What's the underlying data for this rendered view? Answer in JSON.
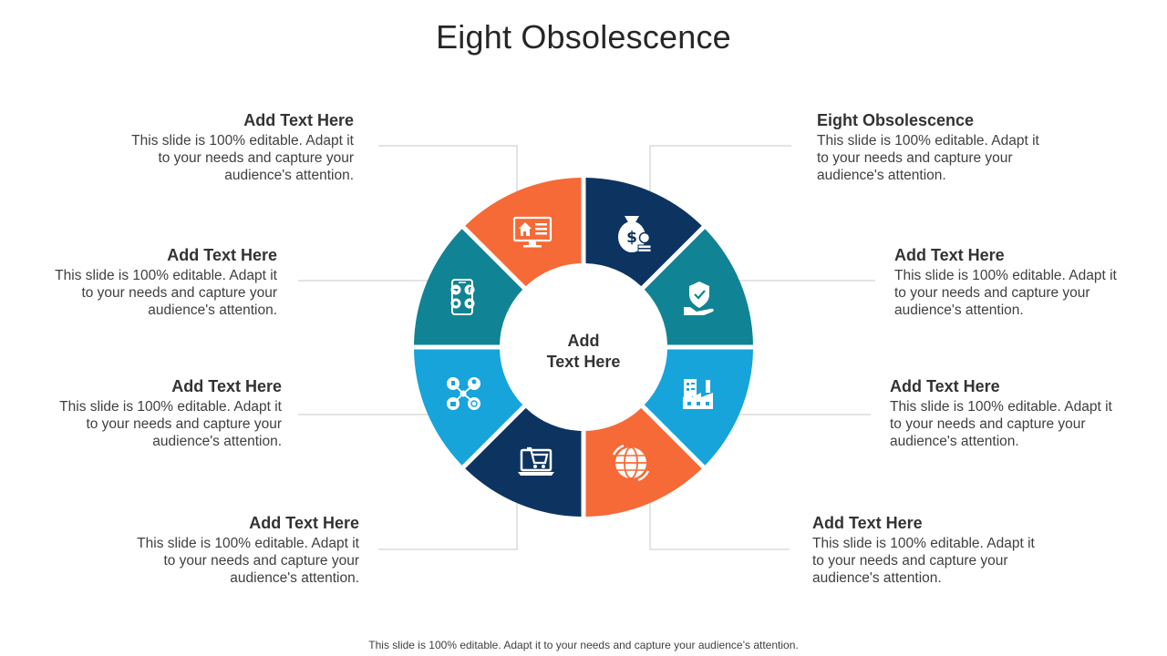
{
  "title": "Eight Obsolescence",
  "center": {
    "line1": "Add",
    "line2": "Text Here"
  },
  "footer": "This slide is 100% editable. Adapt it to your needs and capture your audience’s attention.",
  "colors": {
    "navy": "#0D3461",
    "teal": "#108394",
    "sky": "#16A4DB",
    "orange": "#F56A37",
    "connector": "#C8C8C8"
  },
  "items": [
    {
      "heading": "Eight Obsolescence",
      "body": "This slide is 100% editable. Adapt it to your needs and capture your audience's attention.",
      "icon": "money-bag-coins-icon",
      "color": "navy"
    },
    {
      "heading": "Add Text Here",
      "body": "This slide is 100% editable. Adapt it to your needs and capture your audience's attention.",
      "icon": "hand-shield-icon",
      "color": "teal"
    },
    {
      "heading": "Add Text Here",
      "body": "This slide is 100% editable. Adapt it to your needs and capture your audience's attention.",
      "icon": "factory-checklist-icon",
      "color": "sky"
    },
    {
      "heading": "Add Text Here",
      "body": "This slide is 100% editable. Adapt it to your needs and capture your audience's attention.",
      "icon": "globe-icon",
      "color": "orange"
    },
    {
      "heading": "Add Text Here",
      "body": "This slide is 100% editable. Adapt it to your needs and capture your audience's attention.",
      "icon": "laptop-cart-icon",
      "color": "navy"
    },
    {
      "heading": "Add Text Here",
      "body": "This slide is 100% editable. Adapt it to your needs and capture your audience's attention.",
      "icon": "network-nodes-icon",
      "color": "sky"
    },
    {
      "heading": "Add Text Here",
      "body": "This slide is 100% editable. Adapt it to your needs and capture your audience's attention.",
      "icon": "smartphone-social-icon",
      "color": "teal"
    },
    {
      "heading": "Add Text Here",
      "body": "This slide is 100% editable. Adapt it to your needs and capture your audience's attention.",
      "icon": "monitor-home-icon",
      "color": "orange"
    }
  ]
}
